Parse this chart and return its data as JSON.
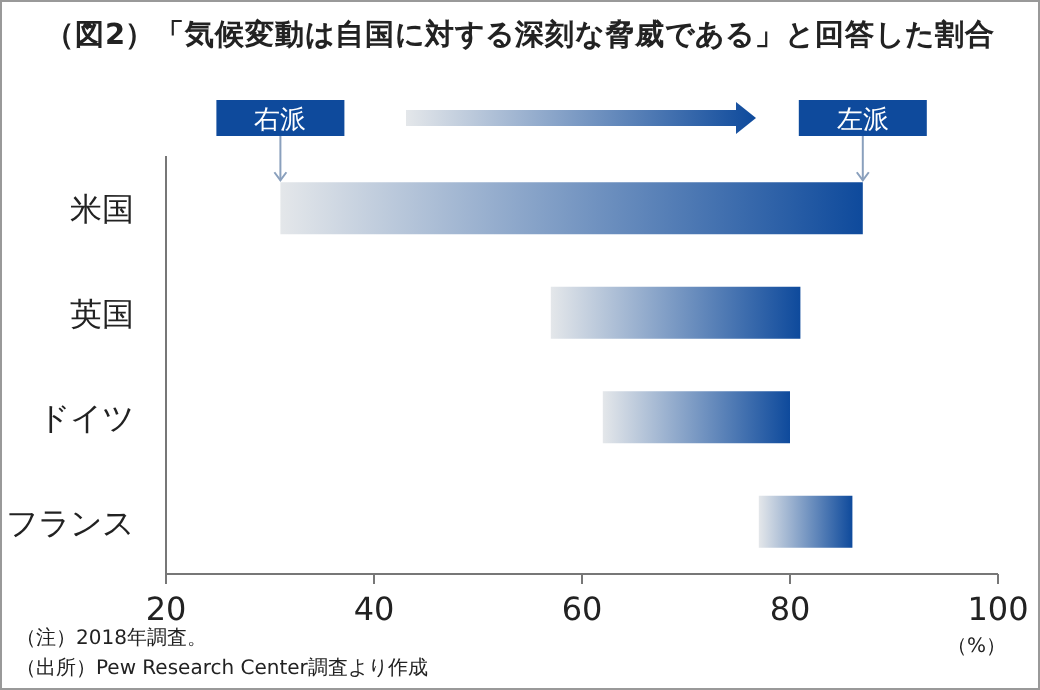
{
  "chart_data": {
    "type": "bar",
    "orientation": "horizontal",
    "title": "（図2）「気候変動は自国に対する深刻な脅威である」と回答した割合",
    "xlabel": "（%）",
    "categories": [
      "米国",
      "英国",
      "ドイツ",
      "フランス"
    ],
    "base": [
      31,
      57,
      62,
      77
    ],
    "values": [
      56,
      24,
      18,
      9
    ],
    "color": "#0e4a9c",
    "xlim": [
      20,
      100
    ],
    "xticks": [
      20,
      40,
      60,
      80,
      100
    ],
    "annotations": [
      {
        "text": "右派",
        "x": 31,
        "y": "米国"
      },
      {
        "text": "左派",
        "x": 87,
        "y": "米国"
      },
      "（注）2018年調査。",
      "（出所）Pew Research Center調査より作成"
    ]
  }
}
